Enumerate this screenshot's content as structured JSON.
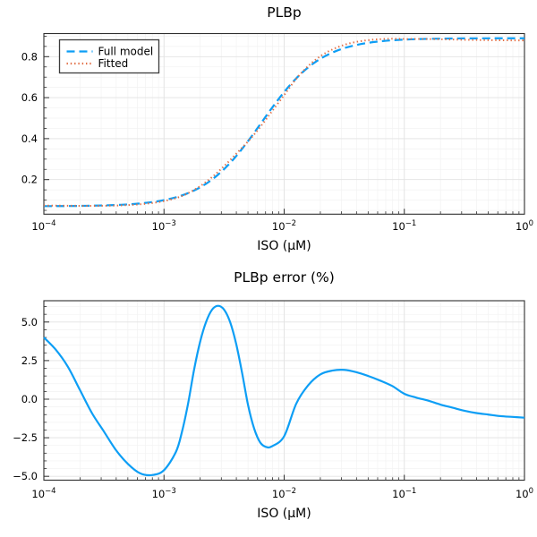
{
  "figure": {
    "background": "#ffffff",
    "frame_color": "#2E2E2E",
    "major_grid_color": "#E2E2E2",
    "minor_grid_color": "#F2F2F2"
  },
  "chart_data": [
    {
      "type": "line",
      "title": "PLBp",
      "xlabel": "ISO (μM)",
      "ylabel": "",
      "xscale": "log10",
      "xlim_log10": [
        -4,
        0
      ],
      "ylim": [
        0.0314,
        0.9127
      ],
      "xtick_log10": [
        -4,
        -3,
        -2,
        -1,
        0
      ],
      "xtick_exp_labels": [
        "−4",
        "−3",
        "−2",
        "−1",
        "0"
      ],
      "ytick_values": [
        0.2,
        0.4,
        0.6,
        0.8
      ],
      "ytick_labels": [
        "0.2",
        "0.4",
        "0.6",
        "0.8"
      ],
      "y_minor": {
        "start": 0.05,
        "end": 0.9,
        "step": 0.05
      },
      "grid": true,
      "legend": {
        "position": "top-left",
        "entries": [
          {
            "label": "Full model",
            "color": "#0D9EF5",
            "dash": "dashed"
          },
          {
            "label": "Fitted",
            "color": "#E26F46",
            "dash": "dotted"
          }
        ]
      },
      "x_log10": [
        -4,
        -3.9,
        -3.8,
        -3.7,
        -3.6,
        -3.5,
        -3.4,
        -3.3,
        -3.2,
        -3.1,
        -3,
        -2.9,
        -2.85,
        -2.8,
        -2.75,
        -2.7,
        -2.65,
        -2.6,
        -2.55,
        -2.5,
        -2.45,
        -2.4,
        -2.35,
        -2.3,
        -2.25,
        -2.2,
        -2.15,
        -2.1,
        -2,
        -1.9,
        -1.8,
        -1.7,
        -1.6,
        -1.5,
        -1.4,
        -1.3,
        -1.2,
        -1.1,
        -1,
        -0.9,
        -0.8,
        -0.7,
        -0.6,
        -0.5,
        -0.4,
        -0.3,
        -0.2,
        -0.1,
        0
      ],
      "series": [
        {
          "name": "Full model",
          "color": "#0D9EF5",
          "dash": "dashed",
          "width": 2.2,
          "values": [
            0.0706,
            0.0708,
            0.0712,
            0.0718,
            0.0728,
            0.0741,
            0.0761,
            0.0791,
            0.0836,
            0.0902,
            0.0999,
            0.1139,
            0.123,
            0.134,
            0.1469,
            0.1621,
            0.18,
            0.2006,
            0.2243,
            0.2511,
            0.2811,
            0.3142,
            0.3501,
            0.3883,
            0.4283,
            0.4693,
            0.5106,
            0.5512,
            0.6276,
            0.6938,
            0.7476,
            0.789,
            0.8196,
            0.8416,
            0.857,
            0.8676,
            0.8749,
            0.8799,
            0.8832,
            0.8854,
            0.8869,
            0.888,
            0.8886,
            0.8891,
            0.8894,
            0.8896,
            0.8897,
            0.8898,
            0.8899
          ]
        },
        {
          "name": "Fitted",
          "color": "#E26F46",
          "dash": "dotted",
          "width": 2,
          "values": [
            0.0734,
            0.0731,
            0.0727,
            0.0722,
            0.0721,
            0.0725,
            0.0736,
            0.0758,
            0.0796,
            0.0858,
            0.0953,
            0.11,
            0.1204,
            0.1336,
            0.1497,
            0.1681,
            0.189,
            0.2122,
            0.2379,
            0.2657,
            0.2952,
            0.3255,
            0.3561,
            0.3867,
            0.4202,
            0.4562,
            0.4948,
            0.5344,
            0.6125,
            0.6917,
            0.7543,
            0.8016,
            0.8348,
            0.8576,
            0.872,
            0.8806,
            0.8854,
            0.8874,
            0.8863,
            0.8863,
            0.886,
            0.8849,
            0.8837,
            0.8824,
            0.8814,
            0.8807,
            0.8799,
            0.8796,
            0.8792
          ]
        }
      ]
    },
    {
      "type": "line",
      "title": "PLBp error (%)",
      "xlabel": "ISO (μM)",
      "ylabel": "",
      "xscale": "log10",
      "xlim_log10": [
        -4,
        0
      ],
      "ylim": [
        -5.25,
        6.38
      ],
      "xtick_log10": [
        -4,
        -3,
        -2,
        -1,
        0
      ],
      "xtick_exp_labels": [
        "−4",
        "−3",
        "−2",
        "−1",
        "0"
      ],
      "ytick_values": [
        -5,
        -2.5,
        0,
        2.5,
        5
      ],
      "ytick_labels": [
        "−5.0",
        "−2.5",
        "0.0",
        "2.5",
        "5.0"
      ],
      "y_minor": {
        "start": -5,
        "end": 6,
        "step": 0.5
      },
      "grid": true,
      "legend": null,
      "x_log10": [
        -4,
        -3.9,
        -3.8,
        -3.7,
        -3.6,
        -3.5,
        -3.4,
        -3.3,
        -3.2,
        -3.1,
        -3,
        -2.9,
        -2.85,
        -2.8,
        -2.75,
        -2.7,
        -2.65,
        -2.6,
        -2.55,
        -2.5,
        -2.45,
        -2.4,
        -2.35,
        -2.3,
        -2.25,
        -2.2,
        -2.15,
        -2.1,
        -2,
        -1.9,
        -1.8,
        -1.7,
        -1.6,
        -1.5,
        -1.4,
        -1.3,
        -1.2,
        -1.1,
        -1,
        -0.9,
        -0.8,
        -0.7,
        -0.6,
        -0.5,
        -0.4,
        -0.3,
        -0.2,
        -0.1,
        0
      ],
      "series": [
        {
          "name": "PLBp error",
          "color": "#0D9EF5",
          "dash": "solid",
          "width": 2.2,
          "values": [
            4,
            3.2,
            2.1,
            0.6,
            -0.9,
            -2.1,
            -3.3,
            -4.2,
            -4.8,
            -4.92,
            -4.6,
            -3.4,
            -2.1,
            -0.3,
            1.9,
            3.7,
            5,
            5.8,
            6.05,
            5.8,
            5,
            3.6,
            1.7,
            -0.4,
            -1.9,
            -2.8,
            -3.1,
            -3.05,
            -2.4,
            -0.3,
            0.9,
            1.6,
            1.85,
            1.9,
            1.75,
            1.5,
            1.2,
            0.85,
            0.35,
            0.1,
            -0.1,
            -0.35,
            -0.55,
            -0.75,
            -0.9,
            -1,
            -1.1,
            -1.15,
            -1.2
          ]
        }
      ]
    }
  ]
}
